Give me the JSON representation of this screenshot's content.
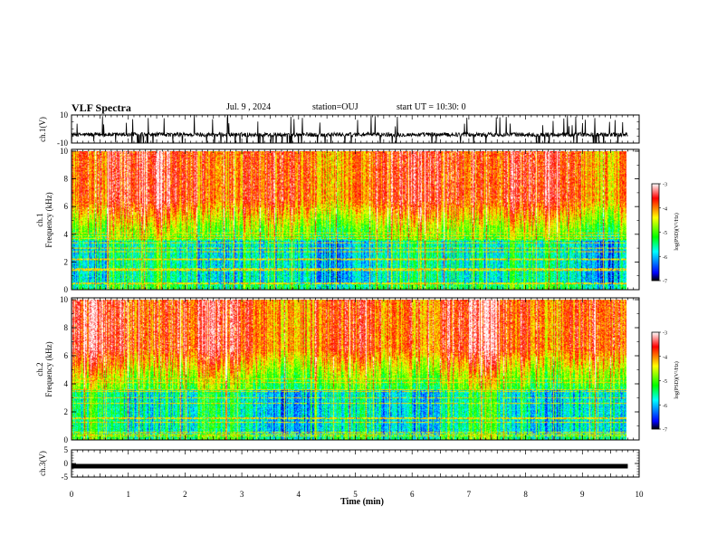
{
  "header": {
    "title": "VLF Spectra",
    "date": "Jul. 9 , 2024",
    "station": "station=OUJ",
    "start_ut": "start UT = 10:30: 0"
  },
  "chart_data": [
    {
      "type": "line",
      "name_key": "ch1_waveform",
      "ylabel": "ch.1(V)",
      "ylim": [
        -10,
        10
      ],
      "yticks": [
        10,
        -10
      ],
      "xlim": [
        0,
        10
      ],
      "trace_color": "#000000",
      "approx_baseline": -4,
      "approx_spread": 3
    },
    {
      "type": "heatmap",
      "name_key": "ch1_spectrogram",
      "ylabel_top": "ch.1",
      "ylabel": "Frequency (kHz)",
      "ylim": [
        0,
        10
      ],
      "yticks": [
        0,
        2,
        4,
        6,
        8,
        10
      ],
      "xlim": [
        0,
        9.8
      ],
      "colorbar": {
        "label": "log(PSD)(V²/Hz)",
        "range": [
          -7,
          -3
        ],
        "ticks": [
          -3,
          -4,
          -5,
          -6,
          -7
        ],
        "colors": [
          "#ffffff",
          "#ff0000",
          "#ffff00",
          "#00ff00",
          "#00ffff",
          "#0000ff",
          "#000000"
        ]
      }
    },
    {
      "type": "heatmap",
      "name_key": "ch2_spectrogram",
      "ylabel_top": "ch.2",
      "ylabel": "Frequency (kHz)",
      "ylim": [
        0,
        10
      ],
      "yticks": [
        0,
        2,
        4,
        6,
        8,
        10
      ],
      "xlim": [
        0,
        9.8
      ],
      "colorbar": {
        "label": "log(PSD)(V²/Hz)",
        "range": [
          -7,
          -3
        ],
        "ticks": [
          -3,
          -4,
          -5,
          -6,
          -7
        ],
        "colors": [
          "#ffffff",
          "#ff0000",
          "#ffff00",
          "#00ff00",
          "#00ffff",
          "#0000ff",
          "#000000"
        ]
      }
    },
    {
      "type": "line",
      "name_key": "ch3_waveform",
      "ylabel": "ch.3(V)",
      "ylim": [
        -5,
        5
      ],
      "yticks": [
        5,
        0,
        -5
      ],
      "xlim": [
        0,
        10
      ],
      "trace_color": "#000000",
      "approx_level": -1
    }
  ],
  "xaxis": {
    "label": "Time (min)",
    "ticks": [
      0,
      1,
      2,
      3,
      4,
      5,
      6,
      7,
      8,
      9,
      10
    ]
  }
}
